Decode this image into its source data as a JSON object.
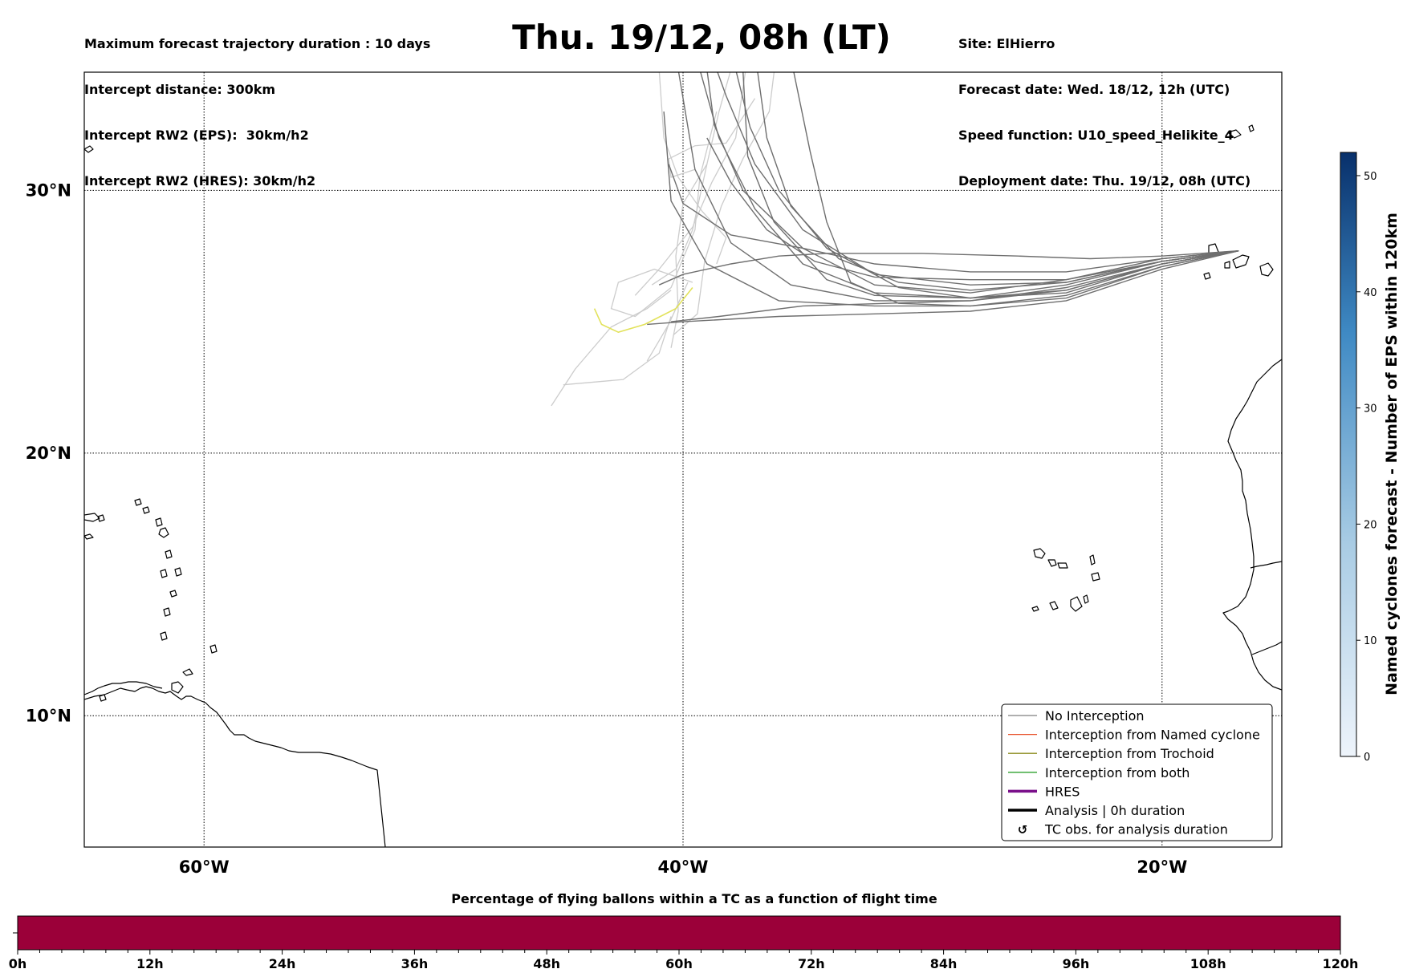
{
  "header": {
    "left_lines": [
      "Maximum forecast trajectory duration : 10 days",
      "Intercept distance: 300km",
      "Intercept RW2 (EPS):  30km/h2",
      "Intercept RW2 (HRES): 30km/h2"
    ],
    "title": "Thu. 19/12, 08h (LT)",
    "right_lines": [
      "Site: ElHierro",
      "Forecast date: Wed. 18/12, 12h (UTC)",
      "Speed function: U10_speed_Helikite_4",
      "Deployment date: Thu. 19/12, 08h (UTC)"
    ]
  },
  "map": {
    "lon_range": [
      -65,
      -15
    ],
    "lat_range": [
      5,
      34.5
    ],
    "lat_labels": [
      {
        "lat": 30,
        "text": "30°N"
      },
      {
        "lat": 20,
        "text": "20°N"
      },
      {
        "lat": 10,
        "text": "10°N"
      }
    ],
    "lon_labels": [
      {
        "lon": -60,
        "text": "60°W"
      },
      {
        "lon": -40,
        "text": "40°W"
      },
      {
        "lon": -20,
        "text": "20°W"
      }
    ],
    "colors": {
      "no_interception": "#6f6f6f",
      "faded_trajectory": "#cccccc",
      "hres_highlight": "#e2e25a",
      "coast": "#000000",
      "grid": "#000000"
    },
    "start_point": {
      "lon": -16.8,
      "lat": 27.7
    }
  },
  "legend": {
    "items": [
      {
        "label": "No Interception",
        "color": "#7f7f7f",
        "style": "thin"
      },
      {
        "label": "Interception from Named cyclone",
        "color": "#e8552f",
        "style": "thin"
      },
      {
        "label": "Interception from Trochoid",
        "color": "#8c8c1e",
        "style": "thin"
      },
      {
        "label": "Interception from both",
        "color": "#2ca02c",
        "style": "thin"
      },
      {
        "label": "HRES",
        "color": "#7a0f8a",
        "style": "thick"
      },
      {
        "label": "Analysis | 0h duration",
        "color": "#000000",
        "style": "thick"
      },
      {
        "label": "TC obs. for analysis duration",
        "color": "#000000",
        "style": "marker"
      }
    ]
  },
  "colorbar": {
    "label": "Named cyclones forecast - Number of EPS within 120km",
    "min": 0,
    "max": 52,
    "ticks": [
      0,
      10,
      20,
      30,
      40,
      50
    ],
    "color_low": "#e8f0fa",
    "color_high": "#08306b"
  },
  "time_bar": {
    "title": "Percentage of flying ballons within a TC as a function of flight time",
    "color": "#9b0039",
    "labels": [
      "0h",
      "12h",
      "24h",
      "36h",
      "48h",
      "60h",
      "72h",
      "84h",
      "96h",
      "108h",
      "120h"
    ]
  }
}
